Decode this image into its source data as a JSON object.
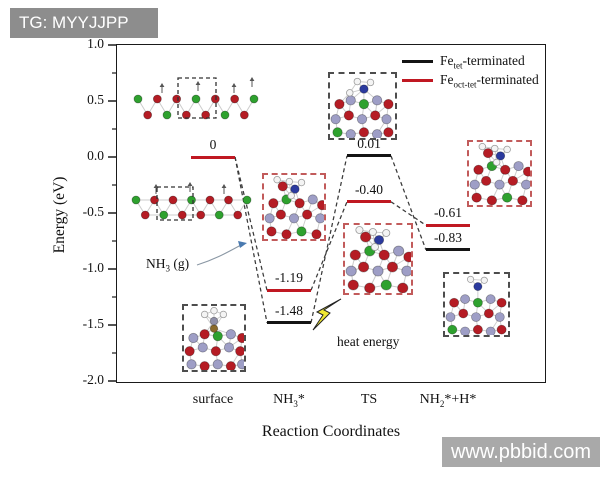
{
  "watermarks": {
    "top_left": "TG: MYYJJPP",
    "bottom_right": "www.pbbid.com"
  },
  "chart_data": {
    "type": "line",
    "subtype": "energy-level-diagram",
    "xlabel": "Reaction Coordinates",
    "ylabel": "Energy (eV)",
    "ylim": [
      -2.0,
      1.0
    ],
    "yticks": [
      "1.0",
      "0.5",
      "0.0",
      "-0.5",
      "-1.0",
      "-1.5",
      "-2.0"
    ],
    "grid": "off",
    "legend_position": "top-right",
    "categories": [
      {
        "pre": "surface",
        "sub": "",
        "post": ""
      },
      {
        "pre": "NH",
        "sub": "3",
        "post": "*"
      },
      {
        "pre": "TS",
        "sub": "",
        "post": ""
      },
      {
        "pre": "NH",
        "sub": "2",
        "post": "*+H*"
      }
    ],
    "series": [
      {
        "name_pre": "Fe",
        "name_sub": "tet",
        "name_post": "-terminated",
        "color": "#141414",
        "values": [
          0,
          -1.48,
          0.01,
          -0.83
        ],
        "labels": [
          "",
          "-1.48",
          "0.01",
          "-0.83"
        ]
      },
      {
        "name_pre": "Fe",
        "name_sub": "oct-tet",
        "name_post": "-terminated",
        "color": "#c01822",
        "values": [
          0,
          -1.19,
          -0.4,
          -0.61
        ],
        "labels": [
          "0",
          "-1.19",
          "-0.40",
          "-0.61"
        ]
      }
    ],
    "annotations": [
      {
        "text_pre": "NH",
        "text_sub": "3",
        "text_post": " (g)"
      },
      {
        "text": "heat energy"
      }
    ]
  },
  "colors": {
    "connector": "#3a3a3a",
    "bolt_fill": "#f0e833",
    "arrow_blue": "#4a7ab0",
    "atom_red": "#b51c24",
    "atom_green": "#2ea12e",
    "atom_lavender": "#9e9ec6",
    "atom_blue": "#2b3a9e",
    "atom_white": "#f4f4f4"
  }
}
